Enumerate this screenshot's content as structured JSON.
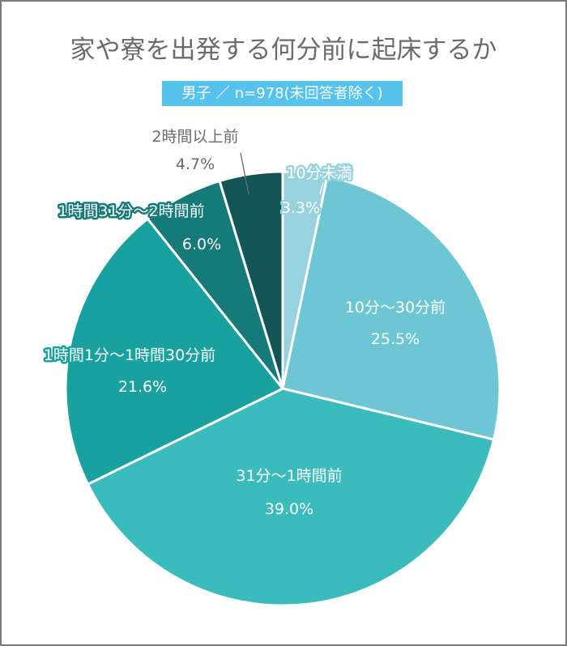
{
  "chart_data": {
    "type": "pie",
    "title": "家や寮を出発する何分前に起床するか",
    "subtitle": "男子 ／ n=978(未回答者除く)",
    "start_angle": "12 o'clock, clockwise",
    "categories": [
      "10分未満",
      "10分〜30分前",
      "31分〜1時間前",
      "1時間1分〜1時間30分前",
      "1時間31分〜2時間前",
      "2時間以上前"
    ],
    "values": [
      3.3,
      25.5,
      39.0,
      21.6,
      6.0,
      4.7
    ],
    "value_labels": [
      "3.3%",
      "25.5%",
      "39.0%",
      "21.6%",
      "6.0%",
      "4.7%"
    ],
    "colors": [
      "#97d2dd",
      "#6dc6d4",
      "#3cbbbd",
      "#19a19f",
      "#157a78",
      "#125556"
    ],
    "unit": "%",
    "legend": "none (inline labels)"
  },
  "header": {
    "title": "家や寮を出発する何分前に起床するか",
    "badge": "男子 ／ n=978(未回答者除く)",
    "badge_color": "#55c3ee"
  },
  "labels": [
    {
      "name": "10分未満",
      "pct": "3.3%"
    },
    {
      "name": "10分〜30分前",
      "pct": "25.5%"
    },
    {
      "name": "31分〜1時間前",
      "pct": "39.0%"
    },
    {
      "name": "1時間1分〜1時間30分前",
      "pct": "21.6%"
    },
    {
      "name": "1時間31分〜2時間前",
      "pct": "6.0%"
    },
    {
      "name": "2時間以上前",
      "pct": "4.7%"
    }
  ]
}
